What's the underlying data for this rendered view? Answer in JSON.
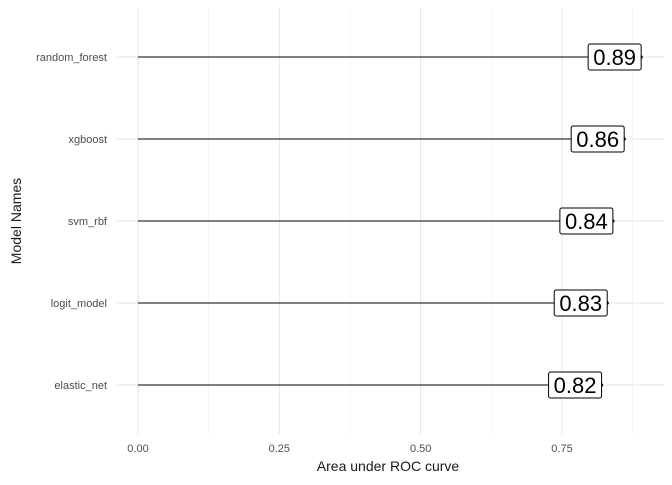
{
  "chart_data": {
    "type": "bar",
    "style": "lollipop",
    "orientation": "horizontal",
    "categories": [
      "random_forest",
      "xgboost",
      "svm_rbf",
      "logit_model",
      "elastic_net"
    ],
    "values": [
      0.89,
      0.86,
      0.84,
      0.83,
      0.82
    ],
    "value_labels": [
      "0.89",
      "0.86",
      "0.84",
      "0.83",
      "0.82"
    ],
    "xlabel": "Area under ROC curve",
    "ylabel": "Model Names",
    "xlim": [
      0,
      0.89
    ],
    "x_ticks": [
      0.0,
      0.25,
      0.5,
      0.75
    ],
    "x_tick_labels": [
      "0.00",
      "0.25",
      "0.50",
      "0.75"
    ],
    "grid": true,
    "legend": "none",
    "colors": {
      "line": "#000000",
      "grid": "#e6e6e6",
      "label_box_fill": "#ffffff",
      "label_box_stroke": "#000000"
    }
  }
}
